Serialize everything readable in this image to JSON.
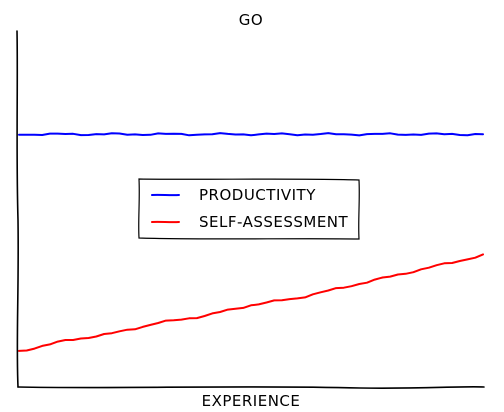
{
  "chart_data": {
    "type": "line",
    "title": "GO",
    "xlabel": "EXPERIENCE",
    "ylabel": "",
    "xlim": [
      0,
      10
    ],
    "ylim": [
      0,
      10
    ],
    "grid": false,
    "x_ticks_visible": false,
    "y_ticks_visible": false,
    "axes_visible": [
      "left",
      "bottom"
    ],
    "legend_position": "center",
    "x": [
      0,
      1,
      2,
      3,
      4,
      5,
      6,
      7,
      8,
      9,
      10
    ],
    "series": [
      {
        "name": "PRODUCTIVITY",
        "color": "#0000ff",
        "values": [
          7.1,
          7.1,
          7.1,
          7.1,
          7.1,
          7.1,
          7.1,
          7.1,
          7.1,
          7.1,
          7.1
        ]
      },
      {
        "name": "SELF-ASSESSMENT",
        "color": "#ff0000",
        "values": [
          1.0,
          1.3,
          1.5,
          1.8,
          2.0,
          2.3,
          2.5,
          2.8,
          3.1,
          3.4,
          3.7
        ]
      }
    ]
  }
}
